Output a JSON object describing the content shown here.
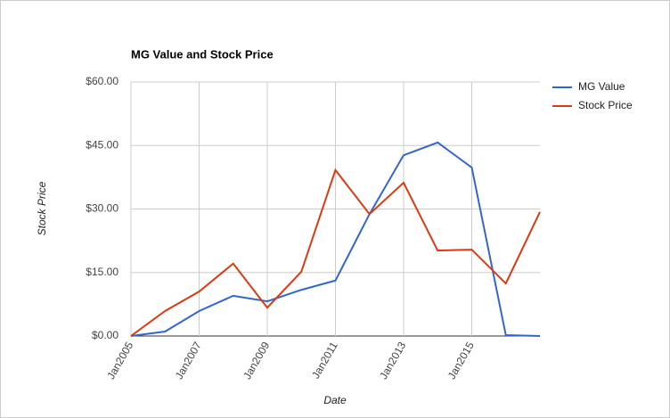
{
  "chart_data": {
    "type": "line",
    "title": "MG Value and Stock Price",
    "x_label": "Date",
    "y_label": "Stock Price",
    "categories": [
      "Jan2005",
      null,
      "Jan2007",
      null,
      "Jan2009",
      null,
      "Jan2011",
      null,
      "Jan2013",
      null,
      "Jan2015",
      null,
      null
    ],
    "series": [
      {
        "name": "MG Value",
        "color": "#3366cc",
        "values": [
          0,
          1.05,
          5.9,
          9.5,
          8.2,
          10.9,
          13.1,
          28.8,
          42.7,
          45.7,
          39.8,
          0.2,
          0
        ]
      },
      {
        "name": "Stock Price",
        "color": "#dc3912",
        "values": [
          0,
          5.9,
          10.5,
          17.1,
          6.7,
          15.2,
          39.2,
          28.8,
          36.2,
          20.2,
          20.4,
          12.4,
          29.3
        ]
      }
    ],
    "ylim": [
      0,
      60
    ],
    "yticks": [
      {
        "value": 0,
        "label": "$0.00"
      },
      {
        "value": 15,
        "label": "$15.00"
      },
      {
        "value": 30,
        "label": "$30.00"
      },
      {
        "value": 45,
        "label": "$45.00"
      },
      {
        "value": 60,
        "label": "$60.00"
      }
    ],
    "grid": true,
    "legend": "right"
  }
}
